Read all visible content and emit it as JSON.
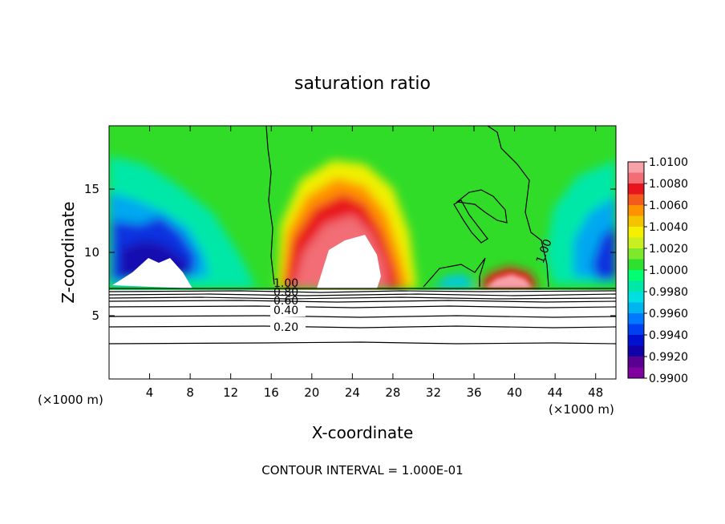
{
  "chart_data": {
    "type": "heatmap",
    "title": "saturation ratio",
    "xlabel": "X-coordinate",
    "ylabel": "Z-coordinate",
    "x_unit_left": "(×1000 m)",
    "x_unit_right": "(×1000 m)",
    "xlim": [
      0,
      50
    ],
    "ylim": [
      0,
      20
    ],
    "xticks": [
      "4",
      "8",
      "12",
      "16",
      "20",
      "24",
      "28",
      "32",
      "36",
      "40",
      "44",
      "48"
    ],
    "yticks": [
      "5",
      "10",
      "15"
    ],
    "footer": "CONTOUR INTERVAL = 1.000E-01",
    "colorbar": {
      "labels": [
        "1.0100",
        "1.0080",
        "1.0060",
        "1.0040",
        "1.0020",
        "1.0000",
        "0.9980",
        "0.9960",
        "0.9940",
        "0.9920",
        "0.9900"
      ],
      "colors": [
        "#f7a0a8",
        "#f26d75",
        "#e8141e",
        "#f25a1e",
        "#ff9200",
        "#f5c400",
        "#f5f000",
        "#c8f020",
        "#7ee82c",
        "#30e030",
        "#00ff70",
        "#00e8a8",
        "#00e0e0",
        "#00b4f0",
        "#0078ff",
        "#0040f0",
        "#0010d0",
        "#1000a8",
        "#5a0090",
        "#8000a0"
      ]
    },
    "contour_labels": [
      {
        "text": "1.00",
        "x": 17.0,
        "z": 7.3
      },
      {
        "text": "0.80",
        "x": 17.0,
        "z": 6.6
      },
      {
        "text": "0.60",
        "x": 17.0,
        "z": 6.1
      },
      {
        "text": "0.40",
        "x": 17.0,
        "z": 5.2
      },
      {
        "text": "0.20",
        "x": 17.0,
        "z": 4.0
      },
      {
        "text": "1.00",
        "x": 42.1,
        "z": 10.0
      }
    ],
    "contour_levels_z": [
      2.9,
      4.3,
      5.1,
      5.6,
      6.2,
      6.6,
      7.1
    ]
  }
}
